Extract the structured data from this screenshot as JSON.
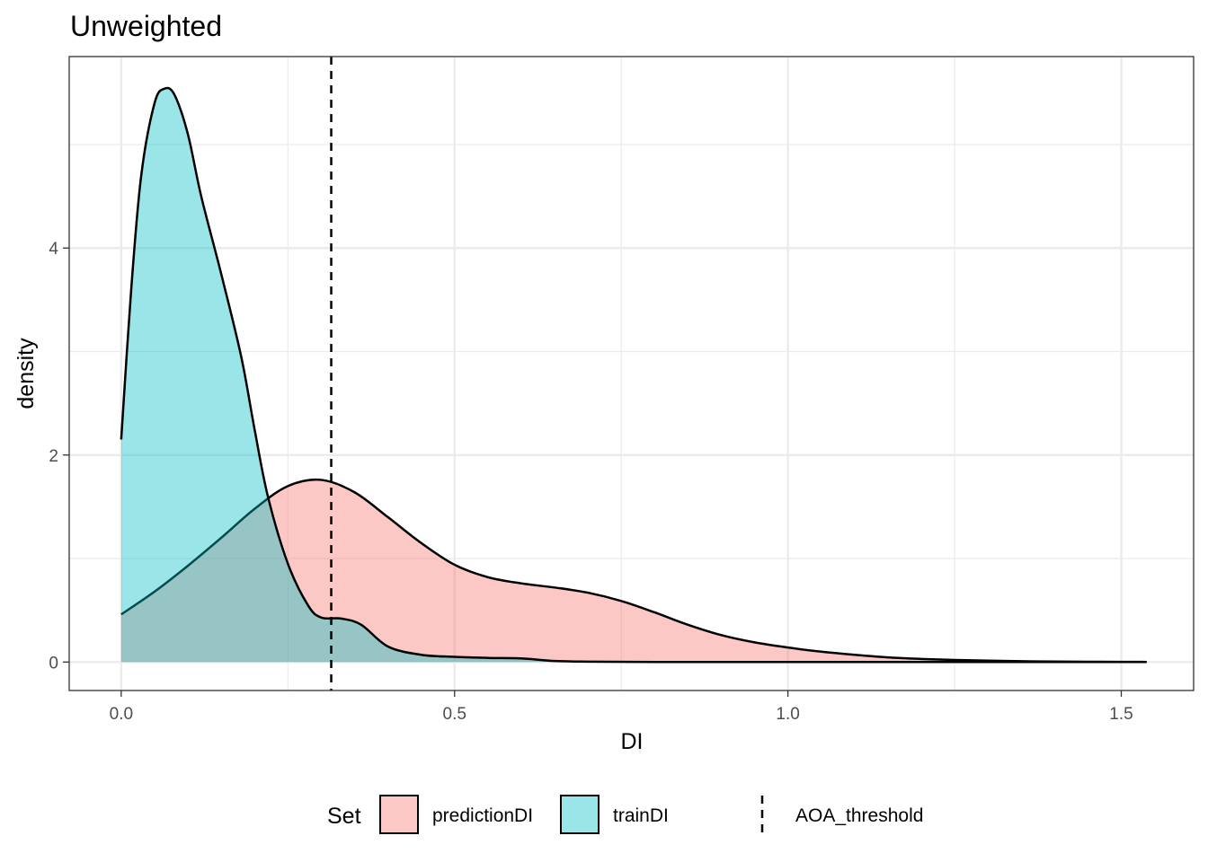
{
  "chart_data": {
    "type": "area",
    "title": "Unweighted",
    "xlabel": "DI",
    "ylabel": "density",
    "xlim": [
      -0.078,
      1.6085
    ],
    "ylim": [
      -0.275,
      5.85
    ],
    "x_ticks": [
      0.0,
      0.5,
      1.0,
      1.5
    ],
    "x_tick_labels": [
      "0.0",
      "0.5",
      "1.0",
      "1.5"
    ],
    "x_minor_ticks": [
      0.25,
      0.75,
      1.25
    ],
    "y_ticks": [
      0,
      2,
      4
    ],
    "y_tick_labels": [
      "0",
      "2",
      "4"
    ],
    "y_minor_ticks": [
      1,
      3,
      5
    ],
    "grid": true,
    "legend_position": "bottom",
    "legend_title": "Set",
    "series": [
      {
        "name": "predictionDI",
        "fill": "#F8766D",
        "opacity": 0.4,
        "x": [
          0.0,
          0.05,
          0.1,
          0.15,
          0.2,
          0.25,
          0.3,
          0.35,
          0.4,
          0.45,
          0.5,
          0.55,
          0.6,
          0.65,
          0.7,
          0.75,
          0.8,
          0.85,
          0.9,
          0.95,
          1.0,
          1.05,
          1.1,
          1.15,
          1.2,
          1.25,
          1.3,
          1.35,
          1.4,
          1.45,
          1.5,
          1.538
        ],
        "y": [
          0.46,
          0.68,
          0.93,
          1.2,
          1.48,
          1.7,
          1.76,
          1.64,
          1.4,
          1.15,
          0.94,
          0.82,
          0.76,
          0.72,
          0.67,
          0.59,
          0.48,
          0.36,
          0.26,
          0.19,
          0.14,
          0.1,
          0.07,
          0.045,
          0.03,
          0.02,
          0.013,
          0.008,
          0.005,
          0.003,
          0.002,
          0.001
        ]
      },
      {
        "name": "trainDI",
        "fill": "#00BFC4",
        "opacity": 0.4,
        "x": [
          0.0,
          0.015,
          0.03,
          0.05,
          0.065,
          0.08,
          0.1,
          0.12,
          0.15,
          0.18,
          0.2,
          0.22,
          0.25,
          0.28,
          0.3,
          0.33,
          0.36,
          0.4,
          0.45,
          0.5,
          0.55,
          0.6,
          0.65,
          0.7,
          0.8,
          1.0,
          1.2,
          1.4,
          1.538
        ],
        "y": [
          2.15,
          3.6,
          4.7,
          5.4,
          5.54,
          5.48,
          5.1,
          4.5,
          3.75,
          2.95,
          2.25,
          1.6,
          0.95,
          0.55,
          0.43,
          0.42,
          0.36,
          0.15,
          0.07,
          0.05,
          0.04,
          0.035,
          0.01,
          0.004,
          0.001,
          0.0,
          0.0,
          0.0,
          0.0
        ]
      }
    ],
    "threshold": {
      "name": "AOA_threshold",
      "x": 0.315,
      "linetype": "dashed"
    }
  }
}
